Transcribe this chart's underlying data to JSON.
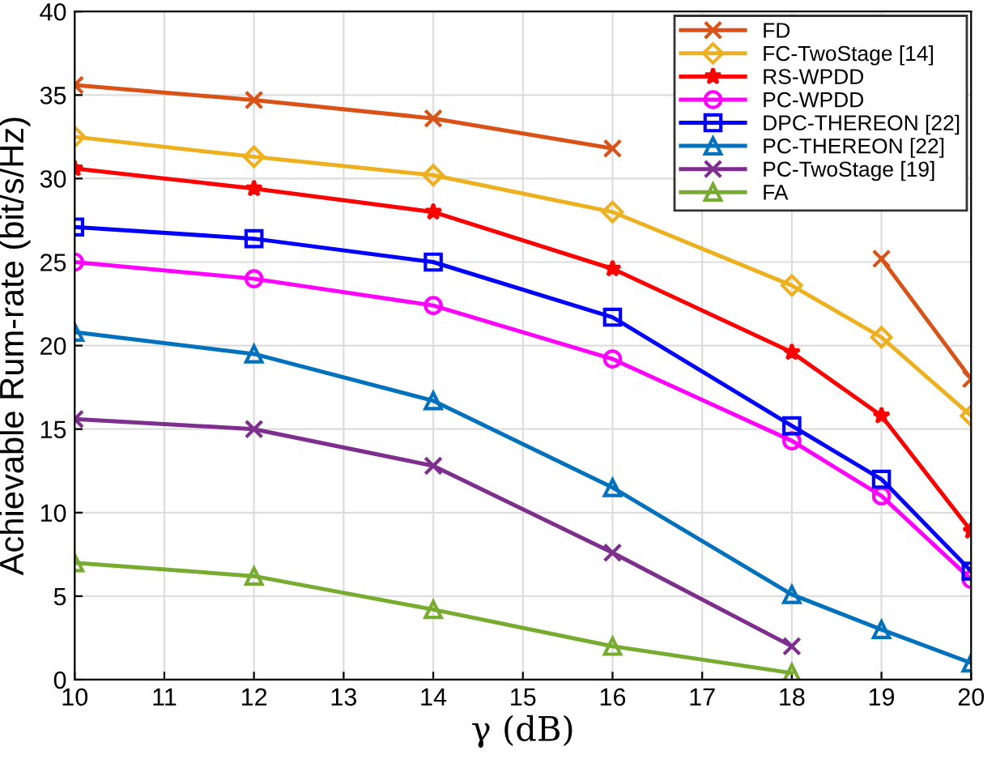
{
  "chart_data": {
    "type": "line",
    "xlabel": "γ (dB)",
    "ylabel": "Achievable Rum-rate (bit/s/Hz)",
    "x": [
      10,
      12,
      14,
      16,
      18,
      19,
      20
    ],
    "xlim": [
      10,
      20
    ],
    "xticks": [
      10,
      11,
      12,
      13,
      14,
      15,
      16,
      17,
      18,
      19,
      20
    ],
    "ylim": [
      0,
      40
    ],
    "yticks": [
      0,
      5,
      10,
      15,
      20,
      25,
      30,
      35,
      40
    ],
    "grid": true,
    "legend": "top right",
    "line_style": "solid",
    "series": [
      {
        "name": "FD",
        "color": "#d95319",
        "marker": "cross",
        "values": [
          35.6,
          34.7,
          33.6,
          31.8,
          null,
          25.2,
          18.0
        ]
      },
      {
        "name": "FC-TwoStage [14]",
        "color": "#edb120",
        "marker": "diamond",
        "values": [
          32.5,
          31.3,
          30.2,
          28.0,
          23.6,
          20.5,
          15.8
        ]
      },
      {
        "name": "RS-WPDD",
        "color": "#ff0000",
        "marker": "star",
        "values": [
          30.6,
          29.4,
          28.0,
          24.6,
          19.6,
          15.8,
          8.9
        ]
      },
      {
        "name": "PC-WPDD",
        "color": "#ff00ff",
        "marker": "circle",
        "values": [
          25.0,
          24.0,
          22.4,
          19.2,
          14.3,
          11.0,
          6.0
        ]
      },
      {
        "name": "DPC-THEREON [22]",
        "color": "#0000ff",
        "marker": "square",
        "values": [
          27.1,
          26.4,
          25.0,
          21.7,
          15.2,
          12.0,
          6.5
        ]
      },
      {
        "name": "PC-THEREON [22]",
        "color": "#0072bd",
        "marker": "triangle",
        "values": [
          20.8,
          19.5,
          16.7,
          11.5,
          5.1,
          3.0,
          1.0
        ]
      },
      {
        "name": "PC-TwoStage [19]",
        "color": "#7e2f8e",
        "marker": "cross",
        "values": [
          15.6,
          15.0,
          12.8,
          7.6,
          2.0,
          null,
          null
        ]
      },
      {
        "name": "FA",
        "color": "#77ac30",
        "marker": "triangle",
        "values": [
          7.0,
          6.2,
          4.2,
          2.0,
          0.4,
          null,
          null
        ]
      }
    ]
  }
}
